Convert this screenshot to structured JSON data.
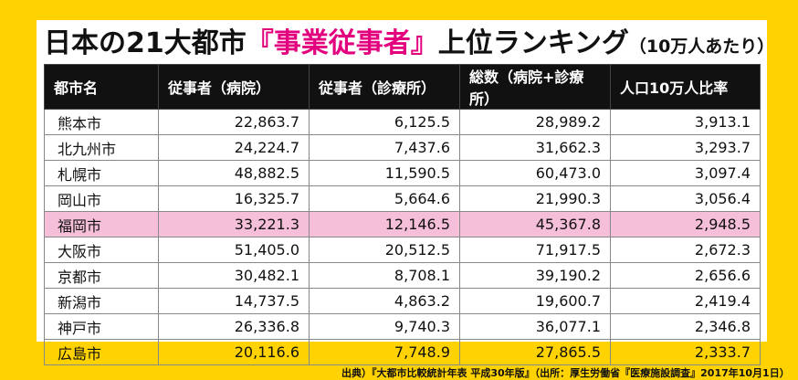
{
  "title": {
    "main": "日本の21大都市",
    "accent": "『事業従事者』",
    "main2": "上位ランキング",
    "suffix": "（10万人あたり）"
  },
  "colors": {
    "background": "#ffd200",
    "accent": "#e3007f",
    "header": "#111111",
    "highlight_row": "#f6bfd9"
  },
  "table": {
    "headers": [
      "都市名",
      "従事者（病院）",
      "従事者（診療所）",
      "総数（病院+診療所）",
      "人口10万人比率"
    ],
    "rows": [
      {
        "city": "熊本市",
        "hospital": "22,863.7",
        "clinic": "6,125.5",
        "total": "28,989.2",
        "ratio": "3,913.1"
      },
      {
        "city": "北九州市",
        "hospital": "24,224.7",
        "clinic": "7,437.6",
        "total": "31,662.3",
        "ratio": "3,293.7"
      },
      {
        "city": "札幌市",
        "hospital": "48,882.5",
        "clinic": "11,590.5",
        "total": "60,473.0",
        "ratio": "3,097.4"
      },
      {
        "city": "岡山市",
        "hospital": "16,325.7",
        "clinic": "5,664.6",
        "total": "21,990.3",
        "ratio": "3,056.4"
      },
      {
        "city": "福岡市",
        "hospital": "33,221.3",
        "clinic": "12,146.5",
        "total": "45,367.8",
        "ratio": "2,948.5",
        "highlight": true
      },
      {
        "city": "大阪市",
        "hospital": "51,405.0",
        "clinic": "20,512.5",
        "total": "71,917.5",
        "ratio": "2,672.3"
      },
      {
        "city": "京都市",
        "hospital": "30,482.1",
        "clinic": "8,708.1",
        "total": "39,190.2",
        "ratio": "2,656.6"
      },
      {
        "city": "新潟市",
        "hospital": "14,737.5",
        "clinic": "4,863.2",
        "total": "19,600.7",
        "ratio": "2,419.4"
      },
      {
        "city": "神戸市",
        "hospital": "26,336.8",
        "clinic": "9,740.3",
        "total": "36,077.1",
        "ratio": "2,346.8"
      },
      {
        "city": "広島市",
        "hospital": "20,116.6",
        "clinic": "7,748.9",
        "total": "27,865.5",
        "ratio": "2,333.7"
      }
    ]
  },
  "source": "出典）『大都市比較統計年表 平成30年版』（出所：厚生労働省『医療施設調査』2017年10月1日）"
}
